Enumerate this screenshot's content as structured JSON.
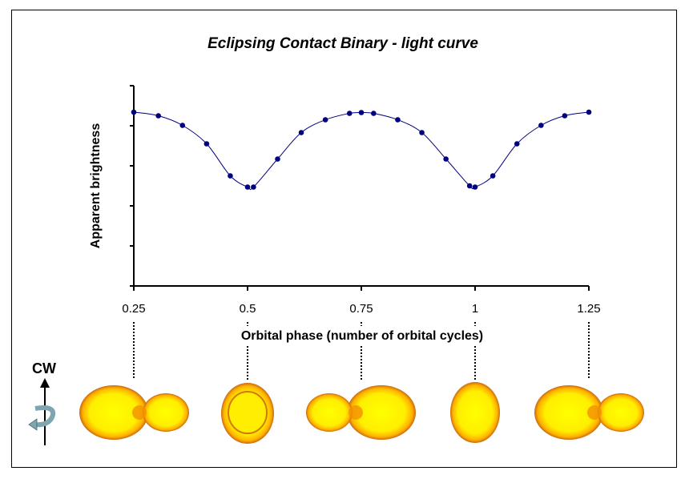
{
  "chart_data": {
    "type": "line",
    "title": "Eclipsing Contact Binary - light curve",
    "xlabel": "Orbital phase (number of orbital cycles)",
    "ylabel": "Apparent brightness",
    "xlim": [
      0.25,
      1.25
    ],
    "ylim": [
      0,
      5
    ],
    "xticks": [
      "0.25",
      "0.5",
      "0.75",
      "1",
      "1.25"
    ],
    "xtick_values": [
      0.25,
      0.5,
      0.75,
      1.0,
      1.25
    ],
    "yticks_count": 6,
    "grid": false,
    "series": [
      {
        "name": "light curve",
        "color": "#000080",
        "x": [
          0.25,
          0.304,
          0.357,
          0.41,
          0.462,
          0.5,
          0.513,
          0.566,
          0.618,
          0.671,
          0.724,
          0.75,
          0.777,
          0.83,
          0.883,
          0.936,
          0.988,
          1.0,
          1.039,
          1.092,
          1.145,
          1.197,
          1.25
        ],
        "y": [
          4.34,
          4.25,
          4.01,
          3.55,
          2.75,
          2.47,
          2.47,
          3.17,
          3.83,
          4.15,
          4.31,
          4.33,
          4.31,
          4.15,
          3.83,
          3.17,
          2.5,
          2.47,
          2.75,
          3.55,
          4.01,
          4.25,
          4.34
        ]
      }
    ]
  },
  "rotation_label": "CW",
  "star_phases": [
    0.25,
    0.5,
    0.75,
    1.0,
    1.25
  ]
}
